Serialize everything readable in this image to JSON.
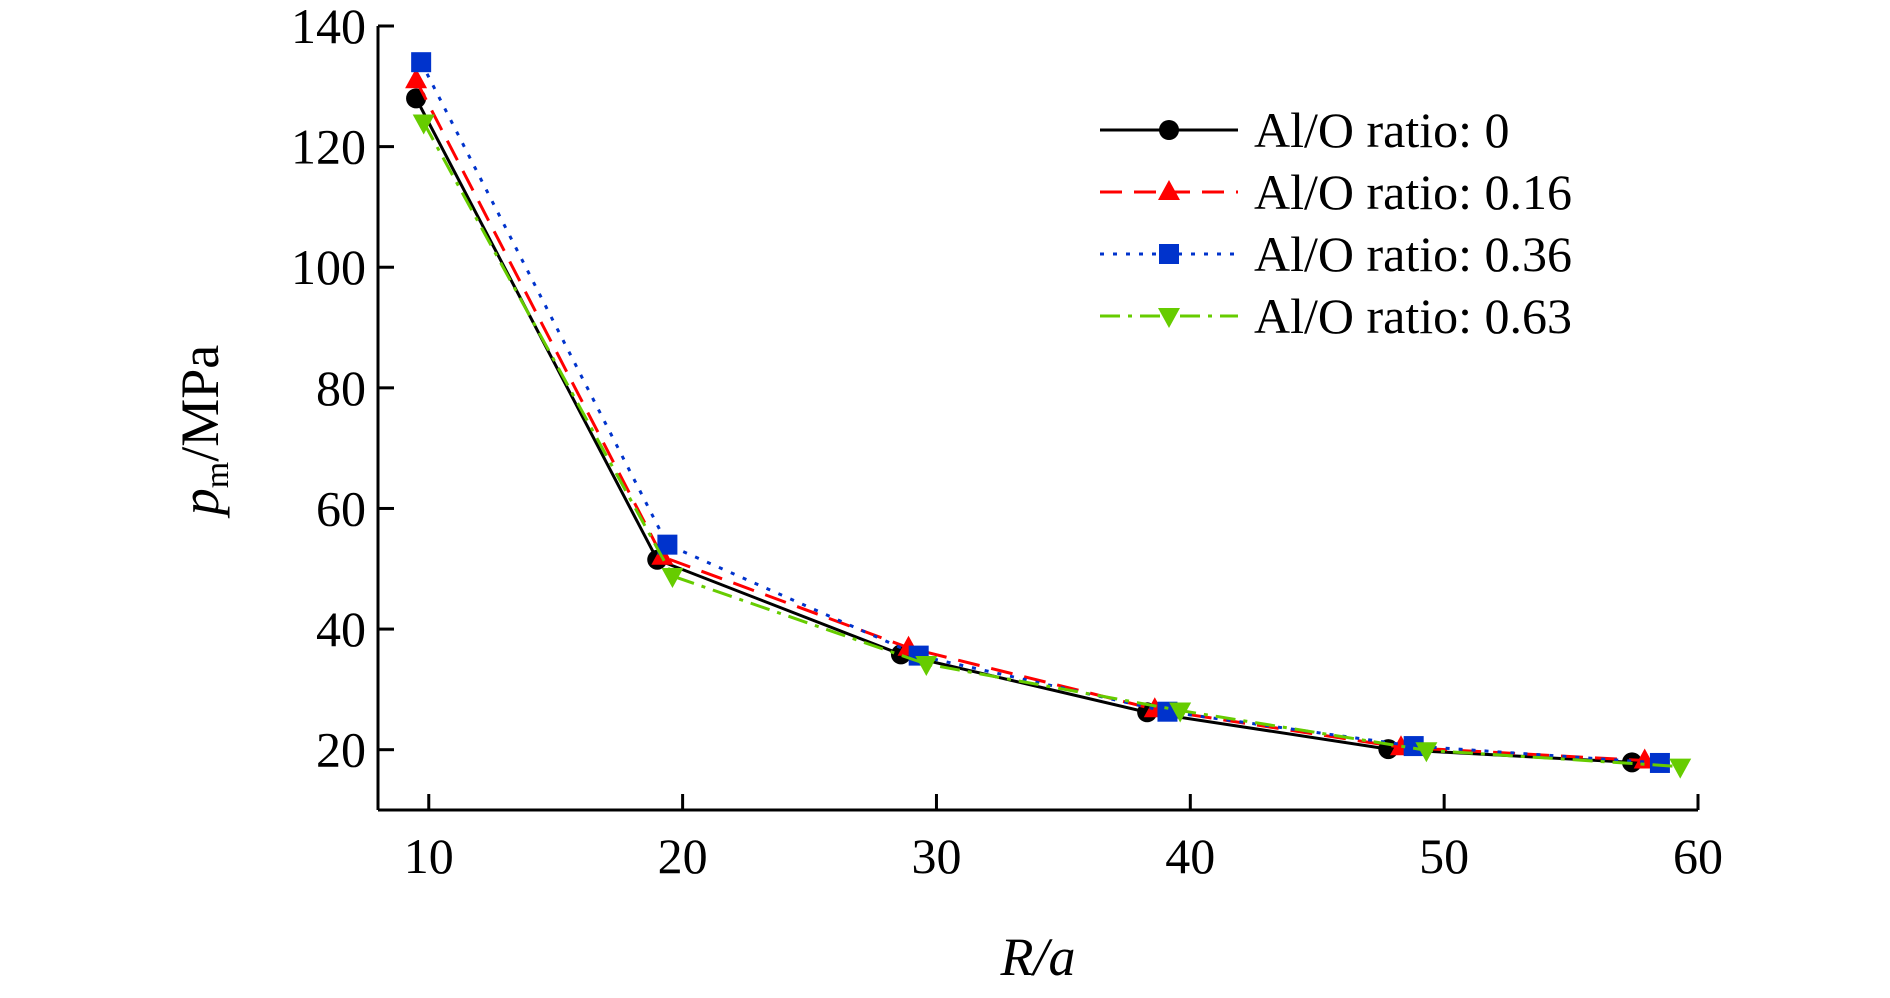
{
  "chart_data": {
    "type": "line",
    "title": "",
    "xlabel": "R/a",
    "xlabel_parts": {
      "main": "R",
      "rest": "/a"
    },
    "ylabel": "pm/MPa",
    "ylabel_parts": {
      "main": "p",
      "sub": "m",
      "unit": "/MPa"
    },
    "xlim": [
      8,
      60
    ],
    "ylim": [
      10,
      140
    ],
    "xticks": [
      10,
      20,
      30,
      40,
      50,
      60
    ],
    "yticks": [
      20,
      40,
      60,
      80,
      100,
      120,
      140
    ],
    "xtick_labels": [
      "10",
      "20",
      "30",
      "40",
      "50",
      "60"
    ],
    "ytick_labels": [
      "20",
      "40",
      "60",
      "80",
      "100",
      "120",
      "140"
    ],
    "grid": false,
    "legend_position": "top-right",
    "series": [
      {
        "name": "Al/O ratio: 0",
        "color": "#000000",
        "dash": "solid",
        "marker": "circle",
        "x": [
          9.5,
          19.0,
          28.6,
          38.3,
          47.8,
          57.4
        ],
        "y": [
          128,
          51.5,
          35.8,
          26.2,
          20.1,
          17.9
        ]
      },
      {
        "name": "Al/O ratio: 0.16",
        "color": "#ff0000",
        "dash": "dashed",
        "marker": "triangle-up",
        "x": [
          9.5,
          19.2,
          28.9,
          38.6,
          48.3,
          57.9
        ],
        "y": [
          131,
          52.0,
          36.9,
          26.7,
          20.4,
          18.2
        ]
      },
      {
        "name": "Al/O ratio: 0.36",
        "color": "#0033cc",
        "dash": "dotted",
        "marker": "square",
        "x": [
          9.7,
          19.4,
          29.3,
          39.1,
          48.8,
          58.5
        ],
        "y": [
          134,
          54.0,
          35.6,
          26.3,
          20.6,
          17.8
        ]
      },
      {
        "name": "Al/O ratio: 0.63",
        "color": "#66cc00",
        "dash": "dashdot",
        "marker": "triangle-down",
        "x": [
          9.8,
          19.6,
          29.6,
          39.6,
          49.3,
          59.3
        ],
        "y": [
          124,
          48.8,
          34.2,
          26.5,
          19.9,
          17.2
        ]
      }
    ]
  }
}
